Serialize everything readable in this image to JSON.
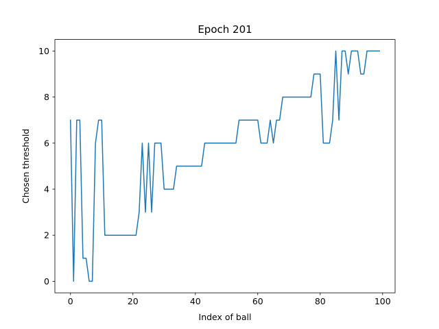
{
  "chart_data": {
    "type": "line",
    "title": "Epoch 201",
    "xlabel": "Index of ball",
    "ylabel": "Chosen threshold",
    "xlim": [
      -5,
      104
    ],
    "ylim": [
      -0.5,
      10.5
    ],
    "xticks": [
      0,
      20,
      40,
      60,
      80,
      100
    ],
    "yticks": [
      0,
      2,
      4,
      6,
      8,
      10
    ],
    "grid": false,
    "series": [
      {
        "name": "threshold",
        "color": "#1f77b4",
        "x": [
          0,
          1,
          2,
          3,
          4,
          5,
          6,
          7,
          8,
          9,
          10,
          11,
          12,
          13,
          14,
          15,
          16,
          17,
          18,
          19,
          20,
          21,
          22,
          23,
          24,
          25,
          26,
          27,
          28,
          29,
          30,
          31,
          32,
          33,
          34,
          35,
          36,
          37,
          38,
          39,
          40,
          41,
          42,
          43,
          44,
          45,
          46,
          47,
          48,
          49,
          50,
          51,
          52,
          53,
          54,
          55,
          56,
          57,
          58,
          59,
          60,
          61,
          62,
          63,
          64,
          65,
          66,
          67,
          68,
          69,
          70,
          71,
          72,
          73,
          74,
          75,
          76,
          77,
          78,
          79,
          80,
          81,
          82,
          83,
          84,
          85,
          86,
          87,
          88,
          89,
          90,
          91,
          92,
          93,
          94,
          95,
          96,
          97,
          98,
          99
        ],
        "values": [
          7,
          0,
          7,
          7,
          1,
          1,
          0,
          0,
          6,
          7,
          7,
          2,
          2,
          2,
          2,
          2,
          2,
          2,
          2,
          2,
          2,
          2,
          3,
          6,
          3,
          6,
          3,
          6,
          6,
          6,
          4,
          4,
          4,
          4,
          5,
          5,
          5,
          5,
          5,
          5,
          5,
          5,
          5,
          6,
          6,
          6,
          6,
          6,
          6,
          6,
          6,
          6,
          6,
          6,
          7,
          7,
          7,
          7,
          7,
          7,
          7,
          6,
          6,
          6,
          7,
          6,
          7,
          7,
          8,
          8,
          8,
          8,
          8,
          8,
          8,
          8,
          8,
          8,
          9,
          9,
          9,
          6,
          6,
          6,
          7,
          10,
          7,
          10,
          10,
          9,
          10,
          10,
          10,
          9,
          9,
          10,
          10,
          10,
          10,
          10
        ]
      }
    ]
  }
}
